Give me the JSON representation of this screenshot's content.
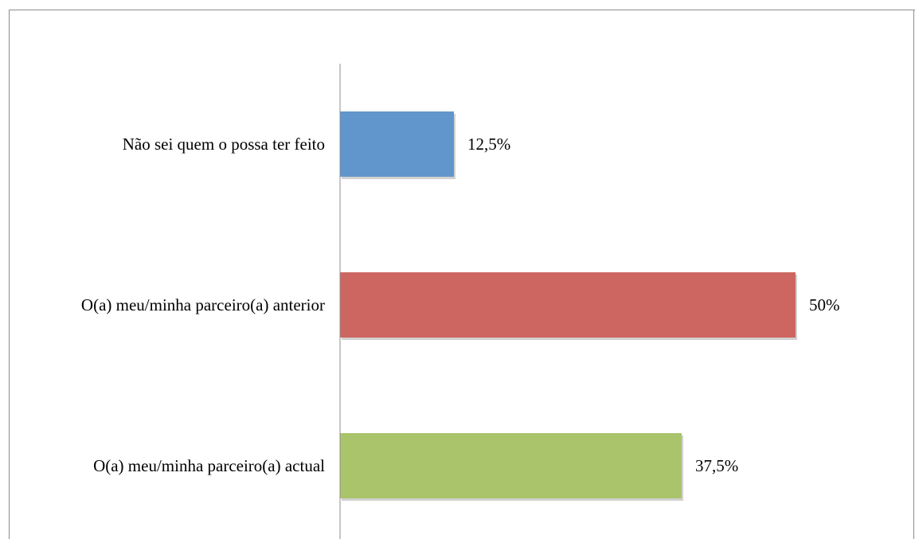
{
  "chart_data": {
    "type": "bar",
    "orientation": "horizontal",
    "categories": [
      "Não sei quem o possa ter feito",
      "O(a) meu/minha parceiro(a) anterior",
      "O(a) meu/minha parceiro(a) actual"
    ],
    "values": [
      12.5,
      50,
      37.5
    ],
    "value_labels": [
      "12,5%",
      "50%",
      "37,5%"
    ],
    "colors": [
      "#6096cc",
      "#cd6660",
      "#aac46c"
    ],
    "xlim": [
      0,
      60
    ],
    "xlabel": "",
    "ylabel": "",
    "title": "",
    "grid": false,
    "legend": "none"
  }
}
